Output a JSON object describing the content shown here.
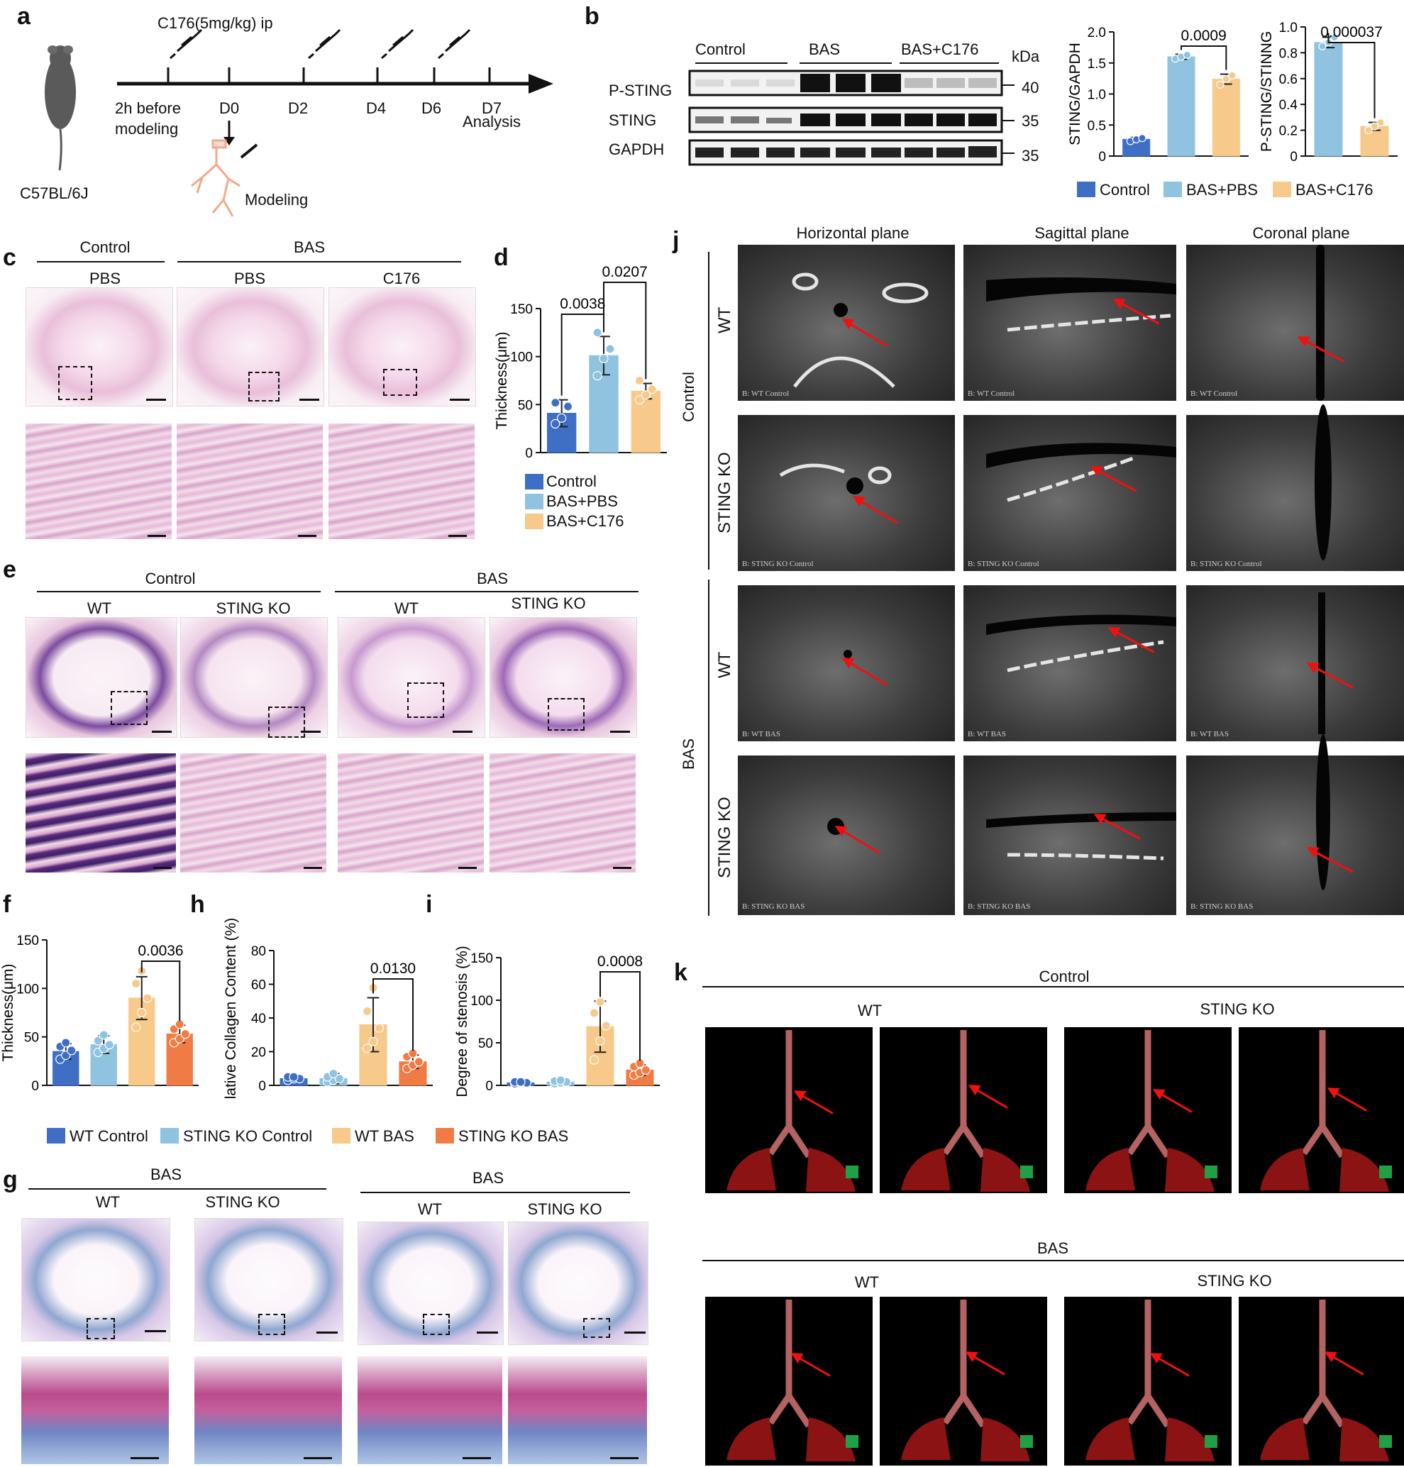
{
  "panel_letters": {
    "a": "a",
    "b": "b",
    "c": "c",
    "d": "d",
    "e": "e",
    "f": "f",
    "g": "g",
    "h": "h",
    "i": "i",
    "j": "j",
    "k": "k"
  },
  "colors": {
    "control": "#3f6fc4",
    "bas_pbs": "#8fc3df",
    "bas_c176": "#f7c98a",
    "wt_control": "#3f6fc4",
    "sting_ko_control": "#8fc3df",
    "wt_bas": "#f7c98a",
    "sting_ko_bas": "#f07b45",
    "arrow": "#e11111"
  },
  "panel_a": {
    "mouse_label": "C57BL/6J",
    "injection_label": "C176(5mg/kg) ip",
    "timeline": [
      "2h before modeling",
      "D0",
      "D2",
      "D4",
      "D6",
      "D7"
    ],
    "t0_line1": "2h before",
    "t0_line2": "modeling",
    "t5_line2": "Analysis",
    "modeling_label": "Modeling",
    "icons": [
      "mouse-icon",
      "syringe-icon",
      "lung-icon"
    ]
  },
  "panel_b": {
    "blot_groups": [
      "Control",
      "BAS",
      "BAS+C176"
    ],
    "kda_label": "kDa",
    "rows": [
      {
        "name": "P-STING",
        "kda": "40"
      },
      {
        "name": "STING",
        "kda": "35"
      },
      {
        "name": "GAPDH",
        "kda": "35"
      }
    ],
    "legend": [
      "Control",
      "BAS+PBS",
      "BAS+C176"
    ]
  },
  "panel_c": {
    "groups": [
      "Control",
      "BAS"
    ],
    "subgroups": [
      "PBS",
      "PBS",
      "C176"
    ]
  },
  "panel_e": {
    "groups": [
      "Control",
      "BAS"
    ],
    "subgroups": [
      "WT",
      "STING KO",
      "WT",
      "STING KO"
    ]
  },
  "panel_g": {
    "groups": [
      "BAS",
      "BAS"
    ],
    "subgroups": [
      "WT",
      "STING KO",
      "WT",
      "STING KO"
    ]
  },
  "panel_j": {
    "planes": [
      "Horizontal plane",
      "Sagittal plane",
      "Coronal plane"
    ],
    "groups": [
      "Control",
      "BAS"
    ],
    "rows": [
      "WT",
      "STING KO",
      "WT",
      "STING KO"
    ],
    "captions": [
      "B: WT Control",
      "B: STING KO Control",
      "B: WT BAS",
      "B: STING KO BAS"
    ]
  },
  "panel_k": {
    "groups": [
      "Control",
      "BAS"
    ],
    "subgroups": [
      "WT",
      "STING KO",
      "WT",
      "STING KO"
    ]
  },
  "legend_fhi": [
    "WT Control",
    "STING KO Control",
    "WT BAS",
    "STING KO BAS"
  ],
  "chart_data": [
    {
      "id": "b1",
      "type": "bar",
      "categories": [
        "Control",
        "BAS+PBS",
        "BAS+C176"
      ],
      "values": [
        0.27,
        1.6,
        1.24
      ],
      "errors": [
        0.03,
        0.04,
        0.08
      ],
      "points": [
        [
          0.24,
          0.27,
          0.29
        ],
        [
          1.57,
          1.6,
          1.63
        ],
        [
          1.15,
          1.24,
          1.3
        ]
      ],
      "ylabel": "STING/GAPDH",
      "yticks": [
        0,
        0.5,
        1.0,
        1.5,
        2.0
      ],
      "ylim": [
        0,
        2.0
      ],
      "annotations": [
        {
          "text": "0.0009",
          "from": 1,
          "to": 2
        }
      ]
    },
    {
      "id": "b2",
      "type": "bar",
      "categories": [
        "BAS+PBS",
        "BAS+C176"
      ],
      "values": [
        0.88,
        0.23
      ],
      "errors": [
        0.04,
        0.03
      ],
      "points": [
        [
          0.85,
          0.88,
          0.92
        ],
        [
          0.2,
          0.23,
          0.26
        ]
      ],
      "ylabel": "P-STING/STINNG",
      "yticks": [
        0,
        0.2,
        0.4,
        0.6,
        0.8,
        1.0
      ],
      "ylim": [
        0,
        1.0
      ],
      "annotations": [
        {
          "text": "0.000037",
          "from": 0,
          "to": 1
        }
      ]
    },
    {
      "id": "d",
      "type": "bar",
      "categories": [
        "Control",
        "BAS+PBS",
        "BAS+C176"
      ],
      "values": [
        41,
        101,
        64
      ],
      "errors": [
        14,
        20,
        8
      ],
      "points": [
        [
          30,
          36,
          48,
          52
        ],
        [
          80,
          98,
          108,
          125
        ],
        [
          55,
          60,
          66,
          75
        ]
      ],
      "ylabel": "Thickness(μm)",
      "yticks": [
        0,
        50,
        100,
        150
      ],
      "ylim": [
        0,
        150
      ],
      "annotations": [
        {
          "text": "0.0038",
          "from": 0,
          "to": 1
        },
        {
          "text": "0.0207",
          "from": 1,
          "to": 2
        }
      ]
    },
    {
      "id": "f",
      "type": "bar",
      "categories": [
        "WT Control",
        "STING KO Control",
        "WT BAS",
        "STING KO BAS"
      ],
      "values": [
        35,
        42,
        90,
        53
      ],
      "errors": [
        8,
        9,
        22,
        9
      ],
      "points": [
        [
          27,
          31,
          36,
          40,
          44
        ],
        [
          34,
          38,
          42,
          46,
          52
        ],
        [
          60,
          75,
          90,
          105,
          118
        ],
        [
          44,
          48,
          53,
          58,
          63
        ]
      ],
      "ylabel": "Thickness(μm)",
      "yticks": [
        0,
        50,
        100,
        150
      ],
      "ylim": [
        0,
        150
      ],
      "annotations": [
        {
          "text": "0.0036",
          "from": 2,
          "to": 3
        }
      ]
    },
    {
      "id": "h",
      "type": "bar",
      "categories": [
        "WT Control",
        "STING KO Control",
        "WT BAS",
        "STING KO BAS"
      ],
      "values": [
        4,
        4,
        36,
        14
      ],
      "errors": [
        1,
        3,
        16,
        4
      ],
      "points": [
        [
          3,
          4,
          4,
          5,
          5
        ],
        [
          2,
          3,
          4,
          5,
          7
        ],
        [
          22,
          26,
          34,
          44,
          58
        ],
        [
          10,
          12,
          14,
          17,
          19
        ]
      ],
      "ylabel": "Relative Collagen Content  (%)",
      "yticks": [
        0,
        20,
        40,
        60,
        80
      ],
      "ylim": [
        0,
        80
      ],
      "annotations": [
        {
          "text": "0.0130",
          "from": 2,
          "to": 3
        }
      ]
    },
    {
      "id": "i",
      "type": "bar",
      "categories": [
        "WT Control",
        "STING KO Control",
        "WT BAS",
        "STING KO BAS"
      ],
      "values": [
        3,
        4,
        69,
        18
      ],
      "errors": [
        1,
        2,
        30,
        6
      ],
      "points": [
        [
          2,
          3,
          3,
          4,
          4
        ],
        [
          2,
          3,
          4,
          5,
          6
        ],
        [
          30,
          52,
          70,
          85,
          98
        ],
        [
          12,
          15,
          18,
          22,
          26
        ]
      ],
      "ylabel": "Degree of  stenosis  (%)",
      "yticks": [
        0,
        50,
        100,
        150
      ],
      "ylim": [
        0,
        150
      ],
      "annotations": [
        {
          "text": "0.0008",
          "from": 2,
          "to": 3
        }
      ]
    }
  ]
}
